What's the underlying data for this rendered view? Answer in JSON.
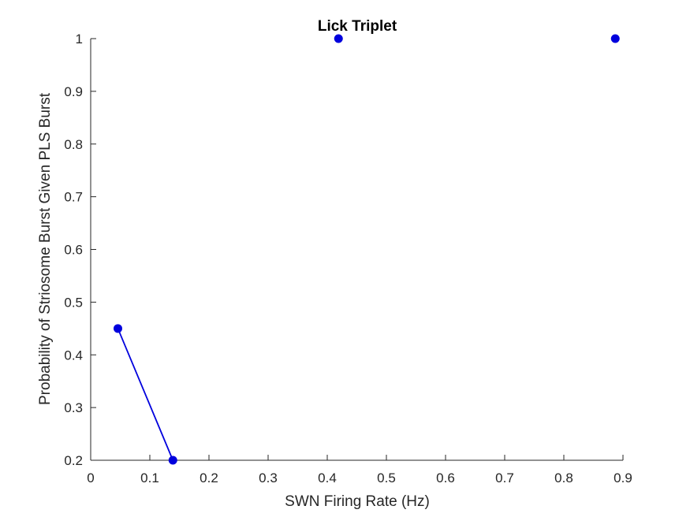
{
  "chart_data": {
    "type": "scatter",
    "title": "Lick Triplet",
    "xlabel": "SWN Firing Rate (Hz)",
    "ylabel": "Probability of Striosome Burst Given PLS Burst",
    "xlim": [
      0,
      0.9
    ],
    "ylim": [
      0.2,
      1.0
    ],
    "xticks": [
      "0",
      "0.1",
      "0.2",
      "0.3",
      "0.4",
      "0.5",
      "0.6",
      "0.7",
      "0.8",
      "0.9"
    ],
    "yticks": [
      "0.2",
      "0.3",
      "0.4",
      "0.5",
      "0.6",
      "0.7",
      "0.8",
      "0.9",
      "1"
    ],
    "grid": false,
    "series": [
      {
        "color": "#0000dd",
        "points": [
          {
            "x": 0.046,
            "y": 0.45
          },
          {
            "x": 0.139,
            "y": 0.2
          },
          {
            "x": 0.419,
            "y": 1.0
          },
          {
            "x": 0.887,
            "y": 1.0
          }
        ],
        "connected_segments": [
          [
            0,
            1
          ]
        ]
      }
    ]
  }
}
